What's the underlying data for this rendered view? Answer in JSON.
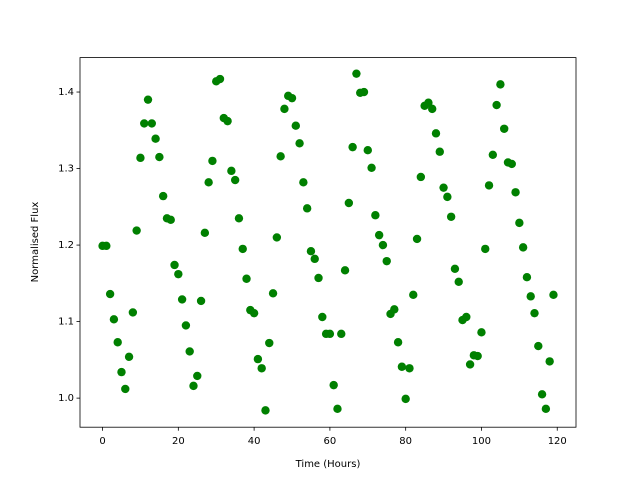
{
  "chart_data": {
    "type": "scatter",
    "xlabel": "Time (Hours)",
    "ylabel": "Normalised Flux",
    "color": "#008000",
    "x": [
      0,
      1,
      2,
      3,
      4,
      5,
      6,
      7,
      8,
      9,
      10,
      11,
      12,
      13,
      14,
      15,
      16,
      17,
      18,
      19,
      20,
      21,
      22,
      23,
      24,
      25,
      26,
      27,
      28,
      29,
      30,
      31,
      32,
      33,
      34,
      35,
      36,
      37,
      38,
      39,
      40,
      41,
      42,
      43,
      44,
      45,
      46,
      47,
      48,
      49,
      50,
      51,
      52,
      53,
      54,
      55,
      56,
      57,
      58,
      59,
      60,
      61,
      62,
      63,
      64,
      65,
      66,
      67,
      68,
      69,
      70,
      71,
      72,
      73,
      74,
      75,
      76,
      77,
      78,
      79,
      80,
      81,
      82,
      83,
      84,
      85,
      86,
      87,
      88,
      89,
      90,
      91,
      92,
      93,
      94,
      95,
      96,
      97,
      98,
      99,
      100,
      101,
      102,
      103,
      104,
      105,
      106,
      107,
      108,
      109,
      110,
      111,
      112,
      113,
      114,
      115,
      116,
      117,
      118,
      119
    ],
    "values": [
      1.199,
      1.199,
      1.136,
      1.103,
      1.073,
      1.034,
      1.012,
      1.054,
      1.112,
      1.219,
      1.314,
      1.359,
      1.39,
      1.359,
      1.339,
      1.315,
      1.264,
      1.235,
      1.233,
      1.174,
      1.162,
      1.129,
      1.095,
      1.061,
      1.016,
      1.029,
      1.127,
      1.216,
      1.282,
      1.31,
      1.414,
      1.417,
      1.366,
      1.362,
      1.297,
      1.285,
      1.235,
      1.195,
      1.156,
      1.115,
      1.111,
      1.051,
      1.039,
      0.984,
      1.072,
      1.137,
      1.21,
      1.316,
      1.378,
      1.395,
      1.392,
      1.356,
      1.333,
      1.282,
      1.248,
      1.192,
      1.182,
      1.157,
      1.106,
      1.084,
      1.084,
      1.017,
      0.986,
      1.084,
      1.167,
      1.255,
      1.328,
      1.424,
      1.399,
      1.4,
      1.324,
      1.301,
      1.239,
      1.213,
      1.2,
      1.179,
      1.11,
      1.116,
      1.073,
      1.041,
      0.999,
      1.039,
      1.135,
      1.208,
      1.289,
      1.382,
      1.386,
      1.378,
      1.346,
      1.322,
      1.275,
      1.263,
      1.237,
      1.169,
      1.152,
      1.102,
      1.106,
      1.044,
      1.056,
      1.055,
      1.086,
      1.195,
      1.278,
      1.318,
      1.383,
      1.41,
      1.352,
      1.308,
      1.306,
      1.269,
      1.229,
      1.197,
      1.158,
      1.133,
      1.111,
      1.068,
      1.005,
      0.986,
      1.048,
      1.135
    ],
    "xlim": [
      -5.95,
      124.95
    ],
    "xticks": [
      0,
      20,
      40,
      60,
      80,
      100,
      120
    ],
    "ylim": [
      0.962,
      1.445
    ],
    "yticks": [
      {
        "value": 1.0,
        "label": "1.0"
      },
      {
        "value": 1.1,
        "label": "1.1"
      },
      {
        "value": 1.2,
        "label": "1.2"
      },
      {
        "value": 1.3,
        "label": "1.3"
      },
      {
        "value": 1.4,
        "label": "1.4"
      }
    ]
  }
}
